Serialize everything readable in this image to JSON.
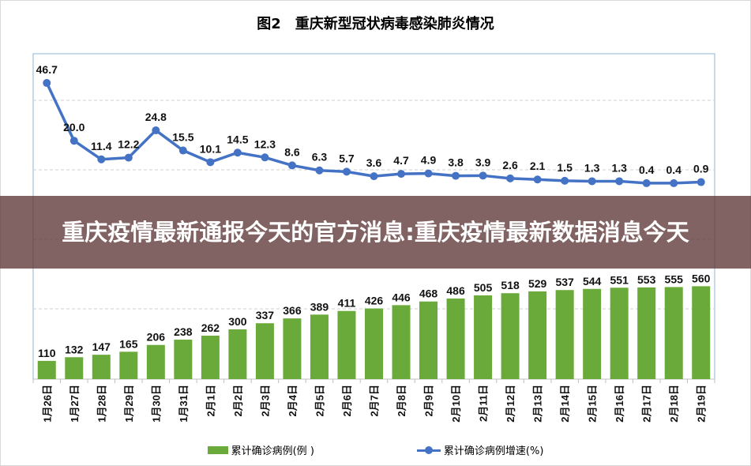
{
  "chart_data": {
    "type": "bar+line",
    "title": "图2　重庆新型冠状病毒感染肺炎情况",
    "categories": [
      "1月26日",
      "1月27日",
      "1月28日",
      "1月29日",
      "1月30日",
      "1月31日",
      "2月1日",
      "2月2日",
      "2月3日",
      "2月4日",
      "2月5日",
      "2月6日",
      "2月7日",
      "2月8日",
      "2月9日",
      "2月10日",
      "2月11日",
      "2月12日",
      "2月13日",
      "2月14日",
      "2月15日",
      "2月16日",
      "2月17日",
      "2月18日",
      "2月19日"
    ],
    "series": [
      {
        "name": "累计确诊病例(例 )",
        "type": "bar",
        "color": "#6aaa3a",
        "values": [
          110,
          132,
          147,
          165,
          206,
          238,
          262,
          300,
          337,
          366,
          389,
          411,
          426,
          446,
          468,
          486,
          505,
          518,
          529,
          537,
          544,
          551,
          553,
          555,
          560
        ]
      },
      {
        "name": "累计确诊病例增速(%)",
        "type": "line",
        "color": "#4472c4",
        "values": [
          46.7,
          20.0,
          11.4,
          12.2,
          24.8,
          15.5,
          10.1,
          14.5,
          12.3,
          8.6,
          6.3,
          5.7,
          3.6,
          4.7,
          4.9,
          3.8,
          3.9,
          2.6,
          2.1,
          1.5,
          1.3,
          1.3,
          0.4,
          0.4,
          0.9
        ]
      }
    ],
    "grid": true,
    "legend_position": "bottom"
  },
  "banner": {
    "text": "重庆疫情最新通报今天的官方消息:重庆疫情最新数据消息今天"
  }
}
